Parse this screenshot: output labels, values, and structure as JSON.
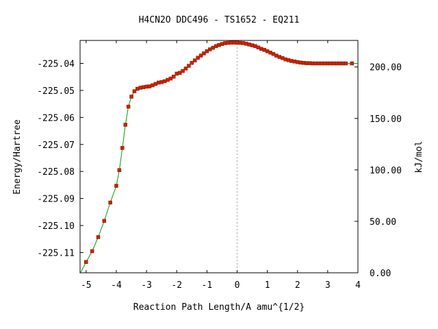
{
  "chart_data": {
    "type": "line",
    "title": "H4CN2O   DDC496 - TS1652 - EQ211",
    "xlabel": "Reaction Path Length/A amu^{1/2}",
    "ylabel": "Energy/Hartree",
    "y2label": "kJ/mol",
    "xlim": [
      -5.2,
      4.0
    ],
    "ylim": [
      -225.1175,
      -225.0315
    ],
    "y2lim": [
      0.0,
      225.8
    ],
    "xticks": [
      "-5",
      "-4",
      "-3",
      "-2",
      "-1",
      "0",
      "1",
      "2",
      "3",
      "4"
    ],
    "xtick_values": [
      -5,
      -4,
      -3,
      -2,
      -1,
      0,
      1,
      2,
      3,
      4
    ],
    "yticks": [
      "-225.04",
      "-225.05",
      "-225.06",
      "-225.07",
      "-225.08",
      "-225.09",
      "-225.10",
      "-225.11"
    ],
    "ytick_values": [
      -225.04,
      -225.05,
      -225.06,
      -225.07,
      -225.08,
      -225.09,
      -225.1,
      -225.11
    ],
    "y2ticks": [
      "200.00",
      "150.00",
      "100.00",
      "50.00",
      "0.00"
    ],
    "y2tick_values": [
      200,
      150,
      100,
      50,
      0
    ],
    "ts_marker_x": 0.0,
    "line_color": "#00a000",
    "marker_color": "#cc2200",
    "series": [
      {
        "x": [
          -5.0,
          -4.8,
          -4.6,
          -4.4,
          -4.2,
          -4.0,
          -3.9,
          -3.8,
          -3.7,
          -3.6,
          -3.5,
          -3.4,
          -3.3,
          -3.2,
          -3.1,
          -3.0,
          -2.9,
          -2.8,
          -2.7,
          -2.6,
          -2.5,
          -2.4,
          -2.3,
          -2.2,
          -2.1,
          -2.0,
          -1.9,
          -1.8,
          -1.7,
          -1.6,
          -1.5,
          -1.4,
          -1.3,
          -1.2,
          -1.1,
          -1.0,
          -0.9,
          -0.8,
          -0.7,
          -0.6,
          -0.5,
          -0.4,
          -0.3,
          -0.2,
          -0.1,
          0.0,
          0.1,
          0.2,
          0.3,
          0.4,
          0.5,
          0.6,
          0.7,
          0.8,
          0.9,
          1.0,
          1.1,
          1.2,
          1.3,
          1.4,
          1.5,
          1.6,
          1.7,
          1.8,
          1.9,
          2.0,
          2.1,
          2.2,
          2.3,
          2.4,
          2.5,
          2.6,
          2.7,
          2.8,
          2.9,
          3.0,
          3.1,
          3.2,
          3.3,
          3.4,
          3.5,
          3.6,
          3.8
        ],
        "y": [
          -225.1135,
          -225.1095,
          -225.1043,
          -225.0983,
          -225.0915,
          -225.0853,
          -225.0795,
          -225.0713,
          -225.0627,
          -225.056,
          -225.0523,
          -225.0503,
          -225.0494,
          -225.049,
          -225.0488,
          -225.0486,
          -225.0485,
          -225.0481,
          -225.0476,
          -225.0471,
          -225.0469,
          -225.0466,
          -225.0461,
          -225.0456,
          -225.0449,
          -225.0438,
          -225.0435,
          -225.0428,
          -225.0419,
          -225.0409,
          -225.0398,
          -225.0389,
          -225.0379,
          -225.0371,
          -225.0363,
          -225.0355,
          -225.0348,
          -225.0342,
          -225.0336,
          -225.0332,
          -225.0328,
          -225.0325,
          -225.0324,
          -225.0323,
          -225.0323,
          -225.0323,
          -225.0324,
          -225.0325,
          -225.0327,
          -225.033,
          -225.0333,
          -225.0336,
          -225.0341,
          -225.0346,
          -225.035,
          -225.0355,
          -225.036,
          -225.0365,
          -225.0371,
          -225.0376,
          -225.038,
          -225.0385,
          -225.0388,
          -225.0391,
          -225.0393,
          -225.0395,
          -225.0397,
          -225.0398,
          -225.0399,
          -225.0399,
          -225.04,
          -225.04,
          -225.04,
          -225.04,
          -225.04,
          -225.04,
          -225.04,
          -225.04,
          -225.04,
          -225.04,
          -225.04,
          -225.04,
          -225.04
        ]
      }
    ]
  }
}
